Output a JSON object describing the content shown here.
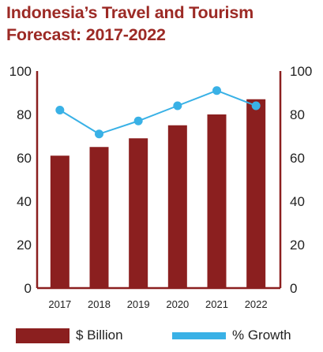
{
  "title": "Indonesia’s Travel and Tourism Forecast: 2017-2022",
  "colors": {
    "title": "#9c2a25",
    "bar": "#8b1f1f",
    "line": "#39b1e6",
    "axis": "#8b1f1f"
  },
  "chart_data": {
    "type": "bar",
    "title": "Indonesia’s Travel and Tourism Forecast: 2017-2022",
    "categories": [
      "2017",
      "2018",
      "2019",
      "2020",
      "2021",
      "2022"
    ],
    "series": [
      {
        "name": "$ Billion",
        "type": "bar",
        "axis": "left",
        "values": [
          61,
          65,
          69,
          75,
          80,
          87
        ]
      },
      {
        "name": "% Growth",
        "type": "line",
        "axis": "right",
        "values": [
          82,
          71,
          77,
          84,
          91,
          84
        ]
      }
    ],
    "ylim": [
      0,
      100
    ],
    "y2lim": [
      0,
      100
    ],
    "yticks": [
      "0",
      "20",
      "40",
      "60",
      "80",
      "100"
    ],
    "y2ticks": [
      "0",
      "20",
      "40",
      "60",
      "80",
      "100"
    ],
    "grid": false,
    "legend": "bottom"
  },
  "legend": {
    "bar_label": "$ Billion",
    "line_label": "% Growth"
  }
}
